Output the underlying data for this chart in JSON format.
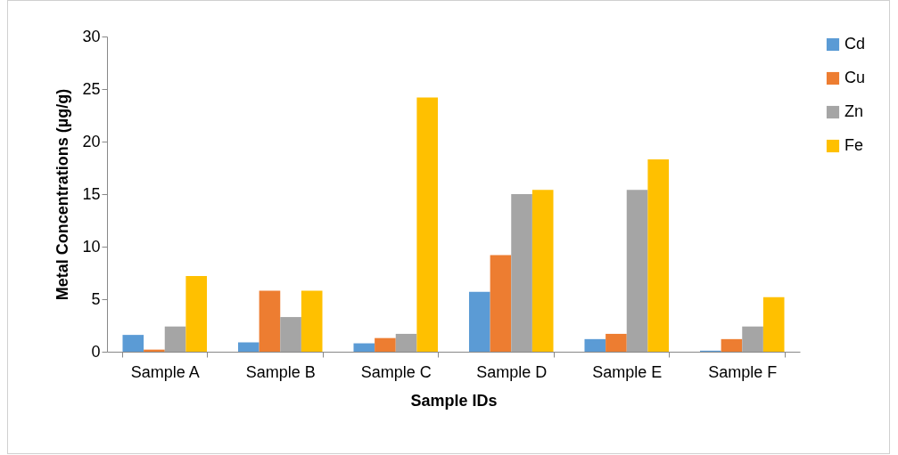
{
  "chart_data": {
    "type": "bar",
    "xlabel": "Sample IDs",
    "ylabel": "Metal Concentrations (µg/g)",
    "categories": [
      "Sample A",
      "Sample B",
      "Sample C",
      "Sample D",
      "Sample E",
      "Sample F"
    ],
    "series": [
      {
        "name": "Cd",
        "color": "#5b9bd5",
        "values": [
          1.6,
          0.9,
          0.8,
          5.7,
          1.2,
          0.1
        ]
      },
      {
        "name": "Cu",
        "color": "#ed7d31",
        "values": [
          0.2,
          5.8,
          1.3,
          9.2,
          1.7,
          1.2
        ]
      },
      {
        "name": "Zn",
        "color": "#a5a5a5",
        "values": [
          2.4,
          3.3,
          1.7,
          15.0,
          15.4,
          2.4
        ]
      },
      {
        "name": "Fe",
        "color": "#ffc000",
        "values": [
          7.2,
          5.8,
          24.2,
          15.4,
          18.3,
          5.2
        ]
      }
    ],
    "ylim": [
      0,
      30
    ],
    "yticks": [
      0,
      5,
      10,
      15,
      20,
      25,
      30
    ],
    "grid": false,
    "legend": "right"
  }
}
